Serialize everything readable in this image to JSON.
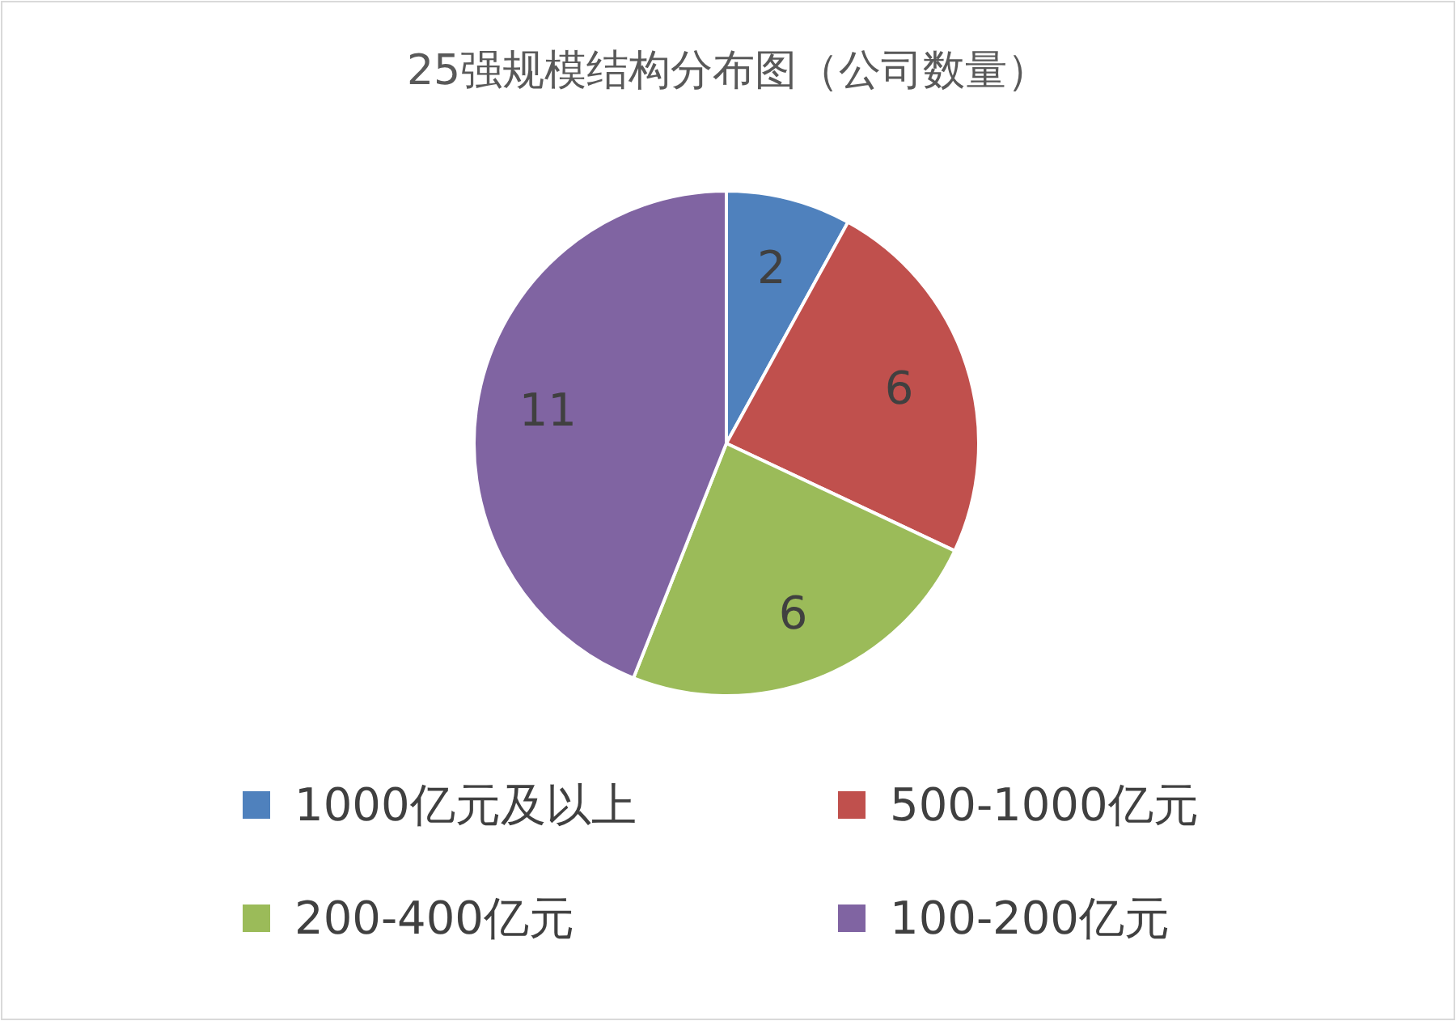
{
  "chart_data": {
    "type": "pie",
    "title": "25强规模结构分布图（公司数量）",
    "categories": [
      "1000亿元及以上",
      "500-1000亿元",
      "200-400亿元",
      "100-200亿元"
    ],
    "values": [
      2,
      6,
      6,
      11
    ],
    "colors": [
      "#4f81bd",
      "#c0504d",
      "#9bbb59",
      "#8064a2"
    ],
    "data_labels": true,
    "legend": "bottom"
  }
}
